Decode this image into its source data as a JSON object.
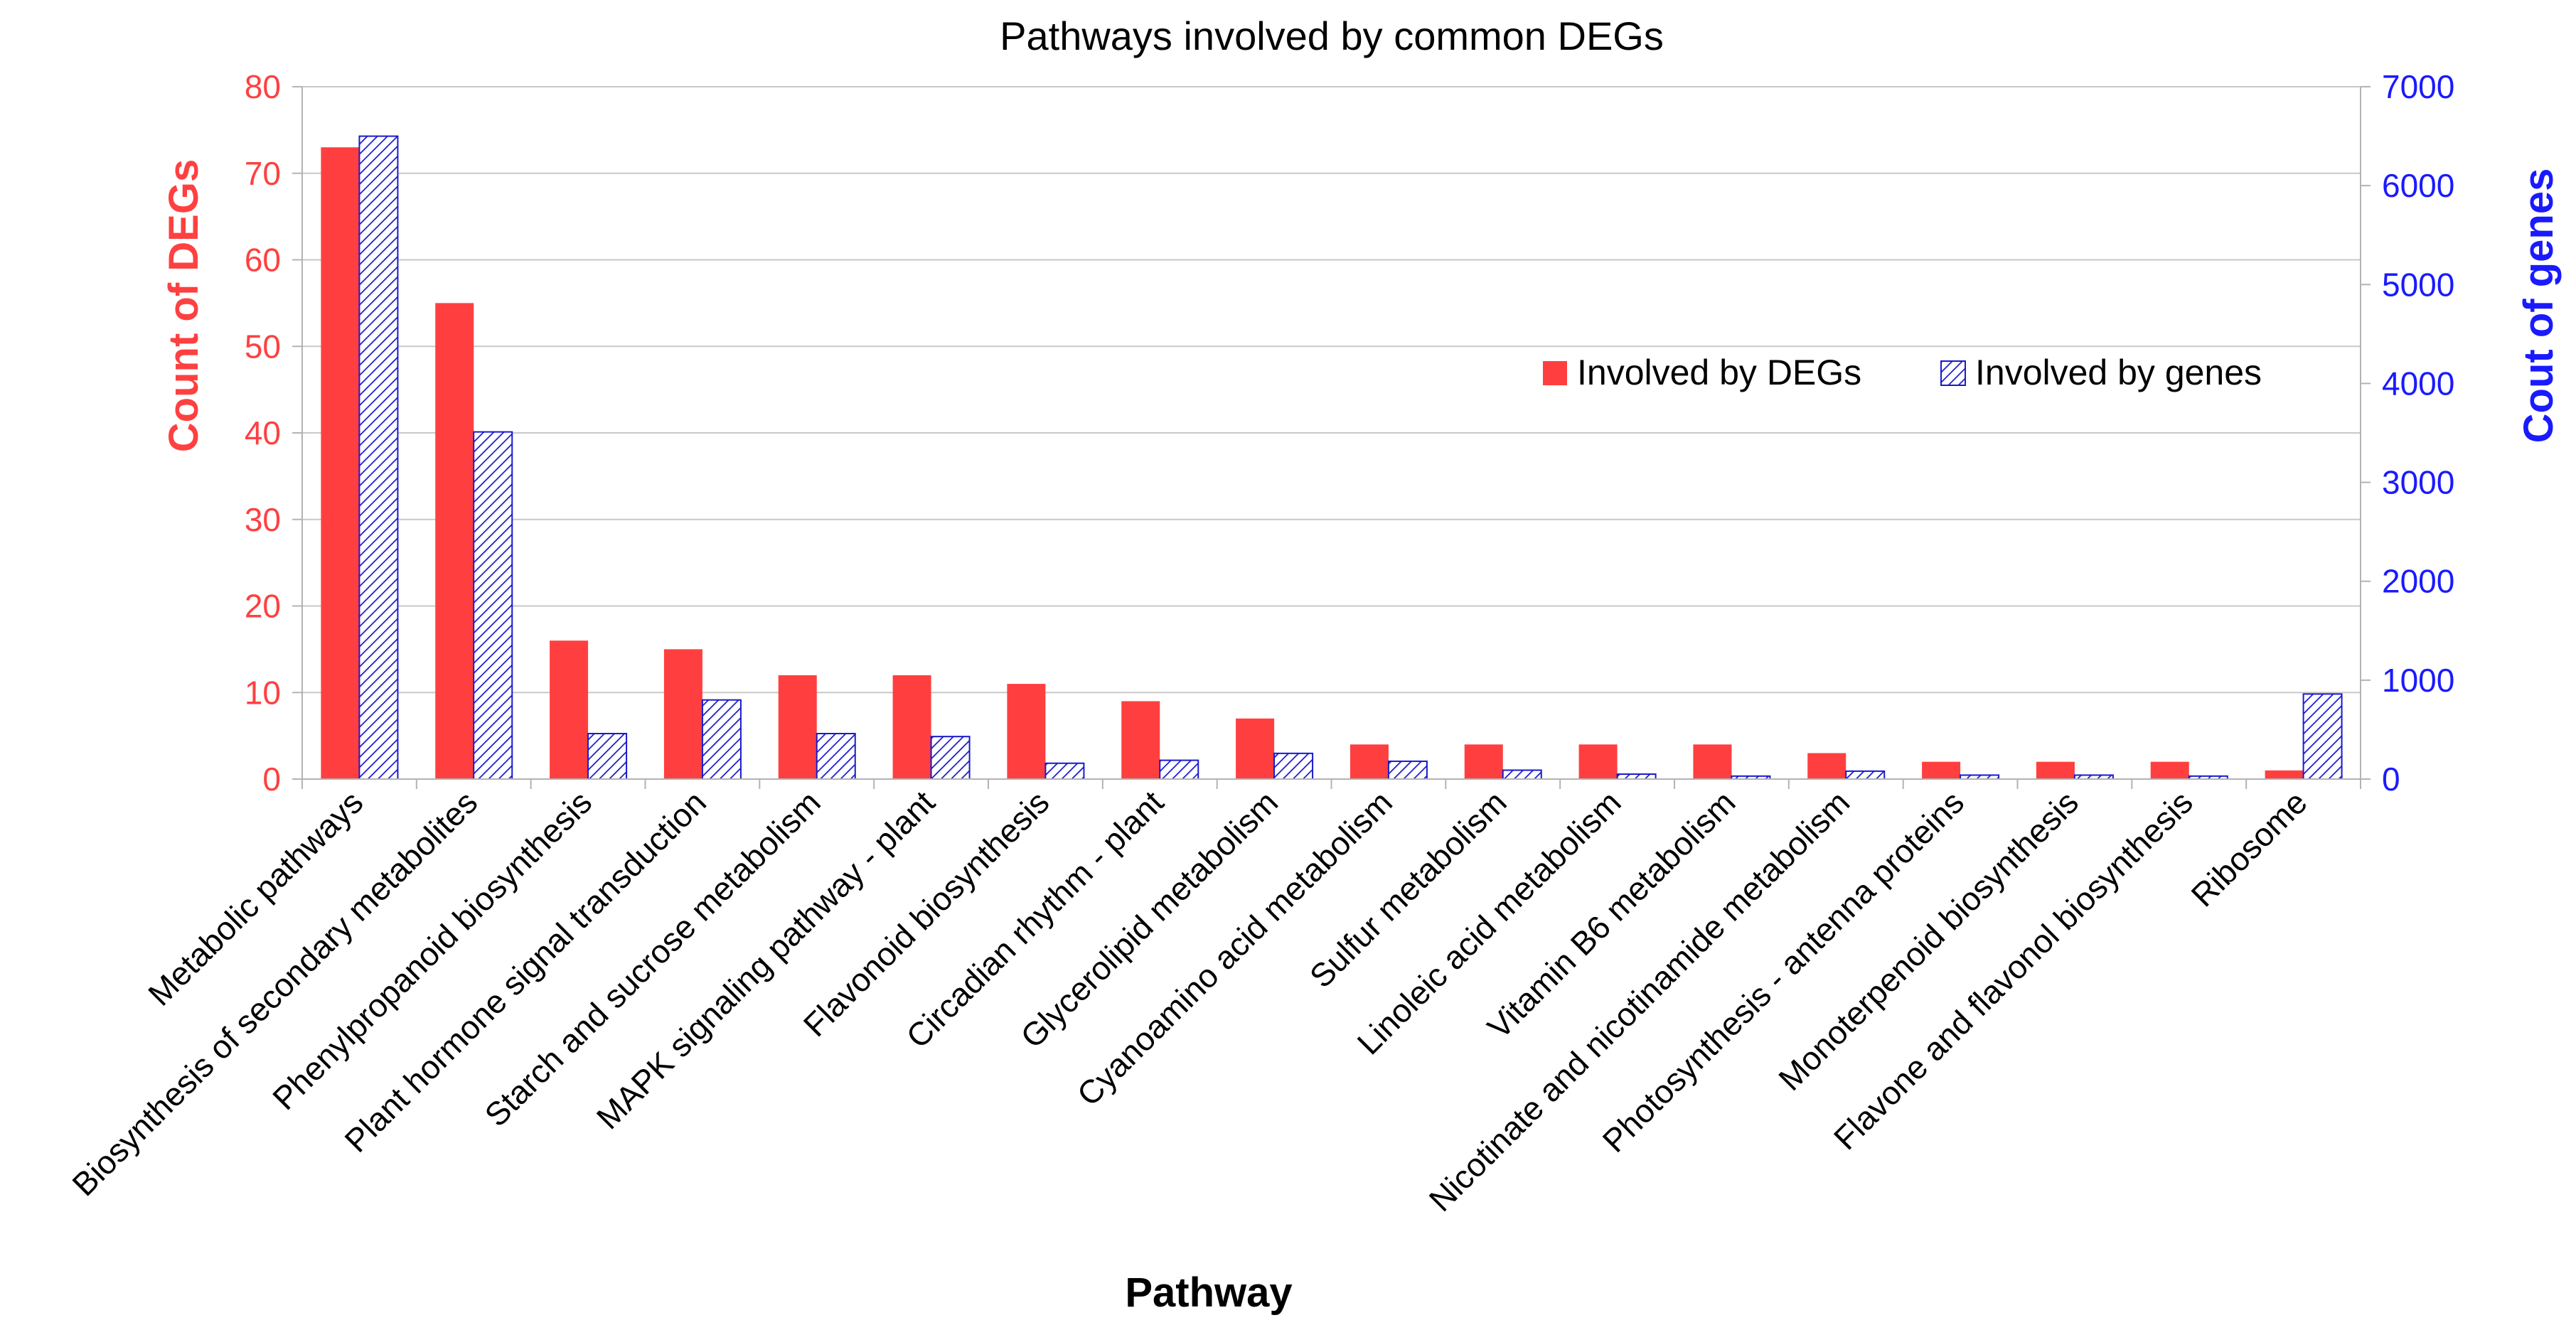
{
  "chart_data": {
    "type": "bar",
    "title": "Pathways involved by common DEGs",
    "xlabel": "Pathway",
    "ylabel_left": "Count of DEGs",
    "ylabel_right": "Cout of genes",
    "ylim_left": [
      0,
      80
    ],
    "ylim_right": [
      0,
      7000
    ],
    "yticks_left": [
      0,
      10,
      20,
      30,
      40,
      50,
      60,
      70,
      80
    ],
    "yticks_right": [
      0,
      1000,
      2000,
      3000,
      4000,
      5000,
      6000,
      7000
    ],
    "grid": true,
    "legend_position": "right-center",
    "colors": {
      "left_axis": "#ff4040",
      "right_axis": "#1a1aff",
      "series_degs": "#ff3f3f",
      "series_genes_fill": "#ffffff",
      "series_genes_hatch": "#1a1acc"
    },
    "categories": [
      "Metabolic pathways",
      "Biosynthesis of secondary metabolites",
      "Phenylpropanoid biosynthesis",
      "Plant hormone signal transduction",
      "Starch and sucrose metabolism",
      "MAPK signaling pathway - plant",
      "Flavonoid biosynthesis",
      "Circadian rhythm - plant",
      "Glycerolipid metabolism",
      "Cyanoamino acid metabolism",
      "Sulfur metabolism",
      "Linoleic acid metabolism",
      "Vitamin B6 metabolism",
      "Nicotinate and nicotinamide metabolism",
      "Photosynthesis - antenna proteins",
      "Monoterpenoid biosynthesis",
      "Flavone and flavonol biosynthesis",
      "Ribosome"
    ],
    "series": [
      {
        "name": "Involved by DEGs",
        "axis": "left",
        "values": [
          73,
          55,
          16,
          15,
          12,
          12,
          11,
          9,
          7,
          4,
          4,
          4,
          4,
          3,
          2,
          2,
          2,
          1
        ]
      },
      {
        "name": "Involved by genes",
        "axis": "right",
        "values": [
          6500,
          3510,
          460,
          800,
          460,
          430,
          160,
          190,
          260,
          180,
          90,
          50,
          30,
          80,
          40,
          40,
          30,
          860
        ]
      }
    ]
  }
}
